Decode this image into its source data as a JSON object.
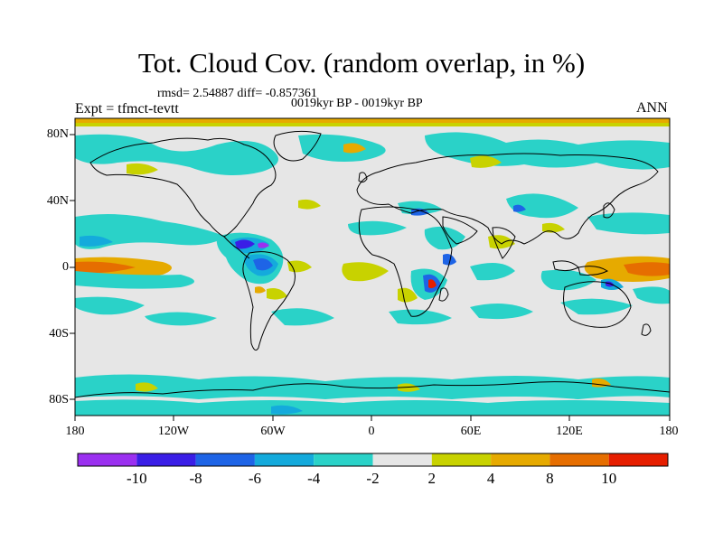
{
  "title": "Tot. Cloud Cov. (random overlap, in %)",
  "stats": "rmsd= 2.54887 diff= -0.857361",
  "period": "0019kyr BP - 0019kyr BP",
  "experiment": "Expt = tfmct-tevtt",
  "season": "ANN",
  "map": {
    "projection": "cylindrical equidistant",
    "lon_range": [
      -180,
      180
    ],
    "lat_range": [
      -90,
      90
    ],
    "background": "#e6e6e6",
    "coastline_color": "#000000"
  },
  "y_ticks": [
    "80N",
    "40N",
    "0",
    "40S",
    "80S"
  ],
  "x_ticks": [
    "180",
    "120W",
    "60W",
    "0",
    "60E",
    "120E",
    "180"
  ],
  "colorbar": {
    "labels": [
      "-10",
      "-8",
      "-6",
      "-4",
      "-2",
      "2",
      "4",
      "8",
      "10"
    ],
    "colors": [
      "#9b30f0",
      "#3a1ee6",
      "#1e64e6",
      "#14aadc",
      "#2ad2c8",
      "#e6e6e6",
      "#c8d200",
      "#e6aa00",
      "#e66e00",
      "#e61e00"
    ]
  }
}
